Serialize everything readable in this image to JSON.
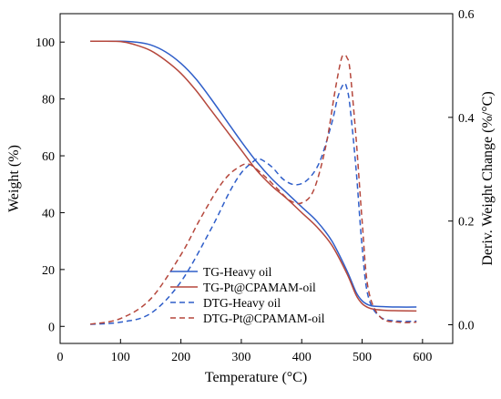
{
  "chart_data": {
    "type": "line",
    "title": "",
    "xlabel": "Temperature (°C)",
    "ylabel": "Weight (%)",
    "y2label": "Deriv. Weight Change (%/°C)",
    "xlim": [
      0,
      650
    ],
    "ylim": [
      -6,
      110
    ],
    "y2lim": [
      -0.036,
      0.6
    ],
    "xticks": [
      "0",
      "100",
      "200",
      "300",
      "400",
      "500",
      "600"
    ],
    "yticks": [
      "0",
      "20",
      "40",
      "60",
      "80",
      "100"
    ],
    "y2ticks": [
      "0.0",
      "0.2",
      "0.4",
      "0.6"
    ],
    "grid": false,
    "legend_position": "bottom-center",
    "series": [
      {
        "name": "TG-Heavy oil",
        "axis": "left",
        "style": "solid",
        "color": "#2f5ec9",
        "x": [
          50,
          100,
          125,
          150,
          175,
          200,
          225,
          250,
          275,
          300,
          325,
          350,
          375,
          400,
          425,
          450,
          475,
          490,
          500,
          510,
          520,
          540,
          560,
          590
        ],
        "y": [
          100.3,
          100.3,
          100,
          99,
          96.5,
          92.5,
          87,
          80,
          72.5,
          65,
          58,
          52,
          47,
          42,
          37,
          30,
          19.5,
          12,
          9,
          7.6,
          7.1,
          6.9,
          6.8,
          6.8
        ]
      },
      {
        "name": "TG-Pt@CPAMAM-oil",
        "axis": "left",
        "style": "solid",
        "color": "#b5473c",
        "x": [
          50,
          100,
          125,
          150,
          175,
          200,
          225,
          250,
          275,
          300,
          325,
          350,
          375,
          400,
          425,
          450,
          475,
          490,
          500,
          510,
          520,
          540,
          560,
          590
        ],
        "y": [
          100.3,
          100.2,
          99,
          97,
          93.5,
          89,
          83,
          76,
          69,
          62,
          55,
          49.5,
          45,
          40,
          35,
          28.5,
          18.5,
          11,
          8,
          6.6,
          6,
          5.6,
          5.5,
          5.4
        ]
      },
      {
        "name": "DTG-Heavy oil",
        "axis": "right",
        "style": "dashed",
        "color": "#2f5ec9",
        "x": [
          50,
          100,
          150,
          200,
          250,
          280,
          300,
          320,
          330,
          350,
          370,
          390,
          410,
          430,
          450,
          460,
          470,
          475,
          480,
          490,
          500,
          510,
          530,
          560,
          590
        ],
        "y": [
          0.001,
          0.005,
          0.022,
          0.083,
          0.185,
          0.255,
          0.293,
          0.315,
          0.32,
          0.305,
          0.28,
          0.27,
          0.28,
          0.315,
          0.39,
          0.44,
          0.465,
          0.455,
          0.42,
          0.3,
          0.15,
          0.055,
          0.015,
          0.007,
          0.007
        ]
      },
      {
        "name": "DTG-Pt@CPAMAM-oil",
        "axis": "right",
        "style": "dashed",
        "color": "#b5473c",
        "x": [
          50,
          100,
          150,
          200,
          230,
          260,
          280,
          300,
          310,
          320,
          340,
          360,
          380,
          400,
          420,
          440,
          455,
          465,
          470,
          475,
          480,
          490,
          500,
          510,
          530,
          560,
          590
        ],
        "y": [
          0.001,
          0.012,
          0.05,
          0.135,
          0.2,
          0.26,
          0.29,
          0.307,
          0.31,
          0.305,
          0.285,
          0.262,
          0.24,
          0.235,
          0.26,
          0.345,
          0.45,
          0.51,
          0.52,
          0.515,
          0.49,
          0.36,
          0.2,
          0.07,
          0.015,
          0.005,
          0.005
        ]
      }
    ]
  }
}
